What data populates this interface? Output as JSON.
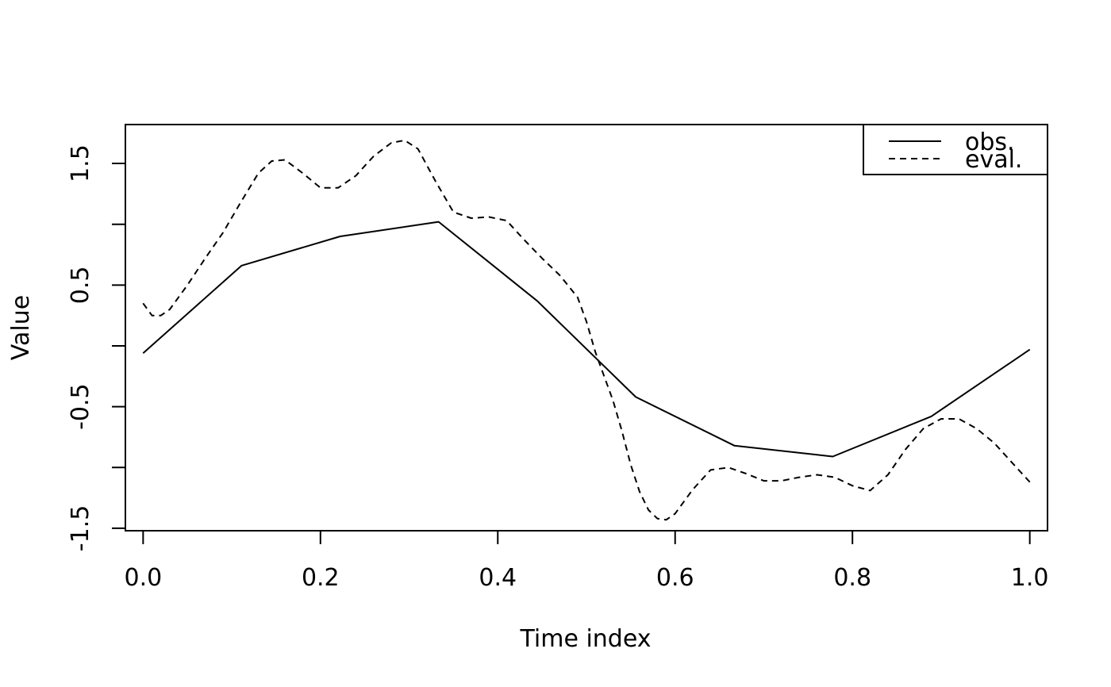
{
  "chart_data": {
    "type": "line",
    "title": "",
    "xlabel": "Time index",
    "ylabel": "Value",
    "xlim": [
      -0.02,
      1.02
    ],
    "ylim": [
      -1.52,
      1.82
    ],
    "x_ticks": [
      0.0,
      0.2,
      0.4,
      0.6,
      0.8,
      1.0
    ],
    "x_tick_labels": [
      "0.0",
      "0.2",
      "0.4",
      "0.6",
      "0.8",
      "1.0"
    ],
    "y_ticks": [
      -1.5,
      -1.0,
      -0.5,
      0.0,
      0.5,
      1.0,
      1.5
    ],
    "y_tick_labels": [
      "-1.5",
      "",
      "-0.5",
      "",
      "0.5",
      "",
      "1.5"
    ],
    "grid": false,
    "legend_position": "top-right",
    "series": [
      {
        "name": "obs.",
        "line_style": "solid",
        "color": "#000000",
        "x": [
          0.0,
          0.1111,
          0.2222,
          0.3333,
          0.4444,
          0.5556,
          0.6667,
          0.7778,
          0.8889,
          1.0
        ],
        "y": [
          -0.06,
          0.66,
          0.9,
          1.02,
          0.37,
          -0.42,
          -0.82,
          -0.91,
          -0.58,
          -0.03
        ]
      },
      {
        "name": "eval.",
        "line_style": "dashed",
        "color": "#000000",
        "x": [
          0.0,
          0.01,
          0.02,
          0.03,
          0.05,
          0.07,
          0.09,
          0.11,
          0.13,
          0.145,
          0.16,
          0.18,
          0.2,
          0.22,
          0.24,
          0.26,
          0.28,
          0.295,
          0.31,
          0.33,
          0.35,
          0.37,
          0.39,
          0.41,
          0.43,
          0.45,
          0.47,
          0.49,
          0.5,
          0.51,
          0.52,
          0.53,
          0.54,
          0.55,
          0.56,
          0.57,
          0.58,
          0.59,
          0.6,
          0.62,
          0.64,
          0.66,
          0.68,
          0.7,
          0.72,
          0.74,
          0.76,
          0.78,
          0.8,
          0.82,
          0.84,
          0.86,
          0.88,
          0.9,
          0.92,
          0.94,
          0.96,
          0.98,
          1.0
        ],
        "y": [
          0.35,
          0.25,
          0.25,
          0.3,
          0.5,
          0.72,
          0.93,
          1.18,
          1.42,
          1.52,
          1.53,
          1.42,
          1.3,
          1.3,
          1.4,
          1.56,
          1.67,
          1.69,
          1.62,
          1.35,
          1.1,
          1.05,
          1.06,
          1.03,
          0.87,
          0.72,
          0.58,
          0.4,
          0.2,
          -0.05,
          -0.25,
          -0.45,
          -0.7,
          -0.98,
          -1.2,
          -1.35,
          -1.42,
          -1.43,
          -1.38,
          -1.18,
          -1.02,
          -1.0,
          -1.05,
          -1.11,
          -1.11,
          -1.08,
          -1.06,
          -1.08,
          -1.15,
          -1.19,
          -1.06,
          -0.85,
          -0.68,
          -0.6,
          -0.6,
          -0.68,
          -0.8,
          -0.96,
          -1.12
        ]
      }
    ]
  }
}
